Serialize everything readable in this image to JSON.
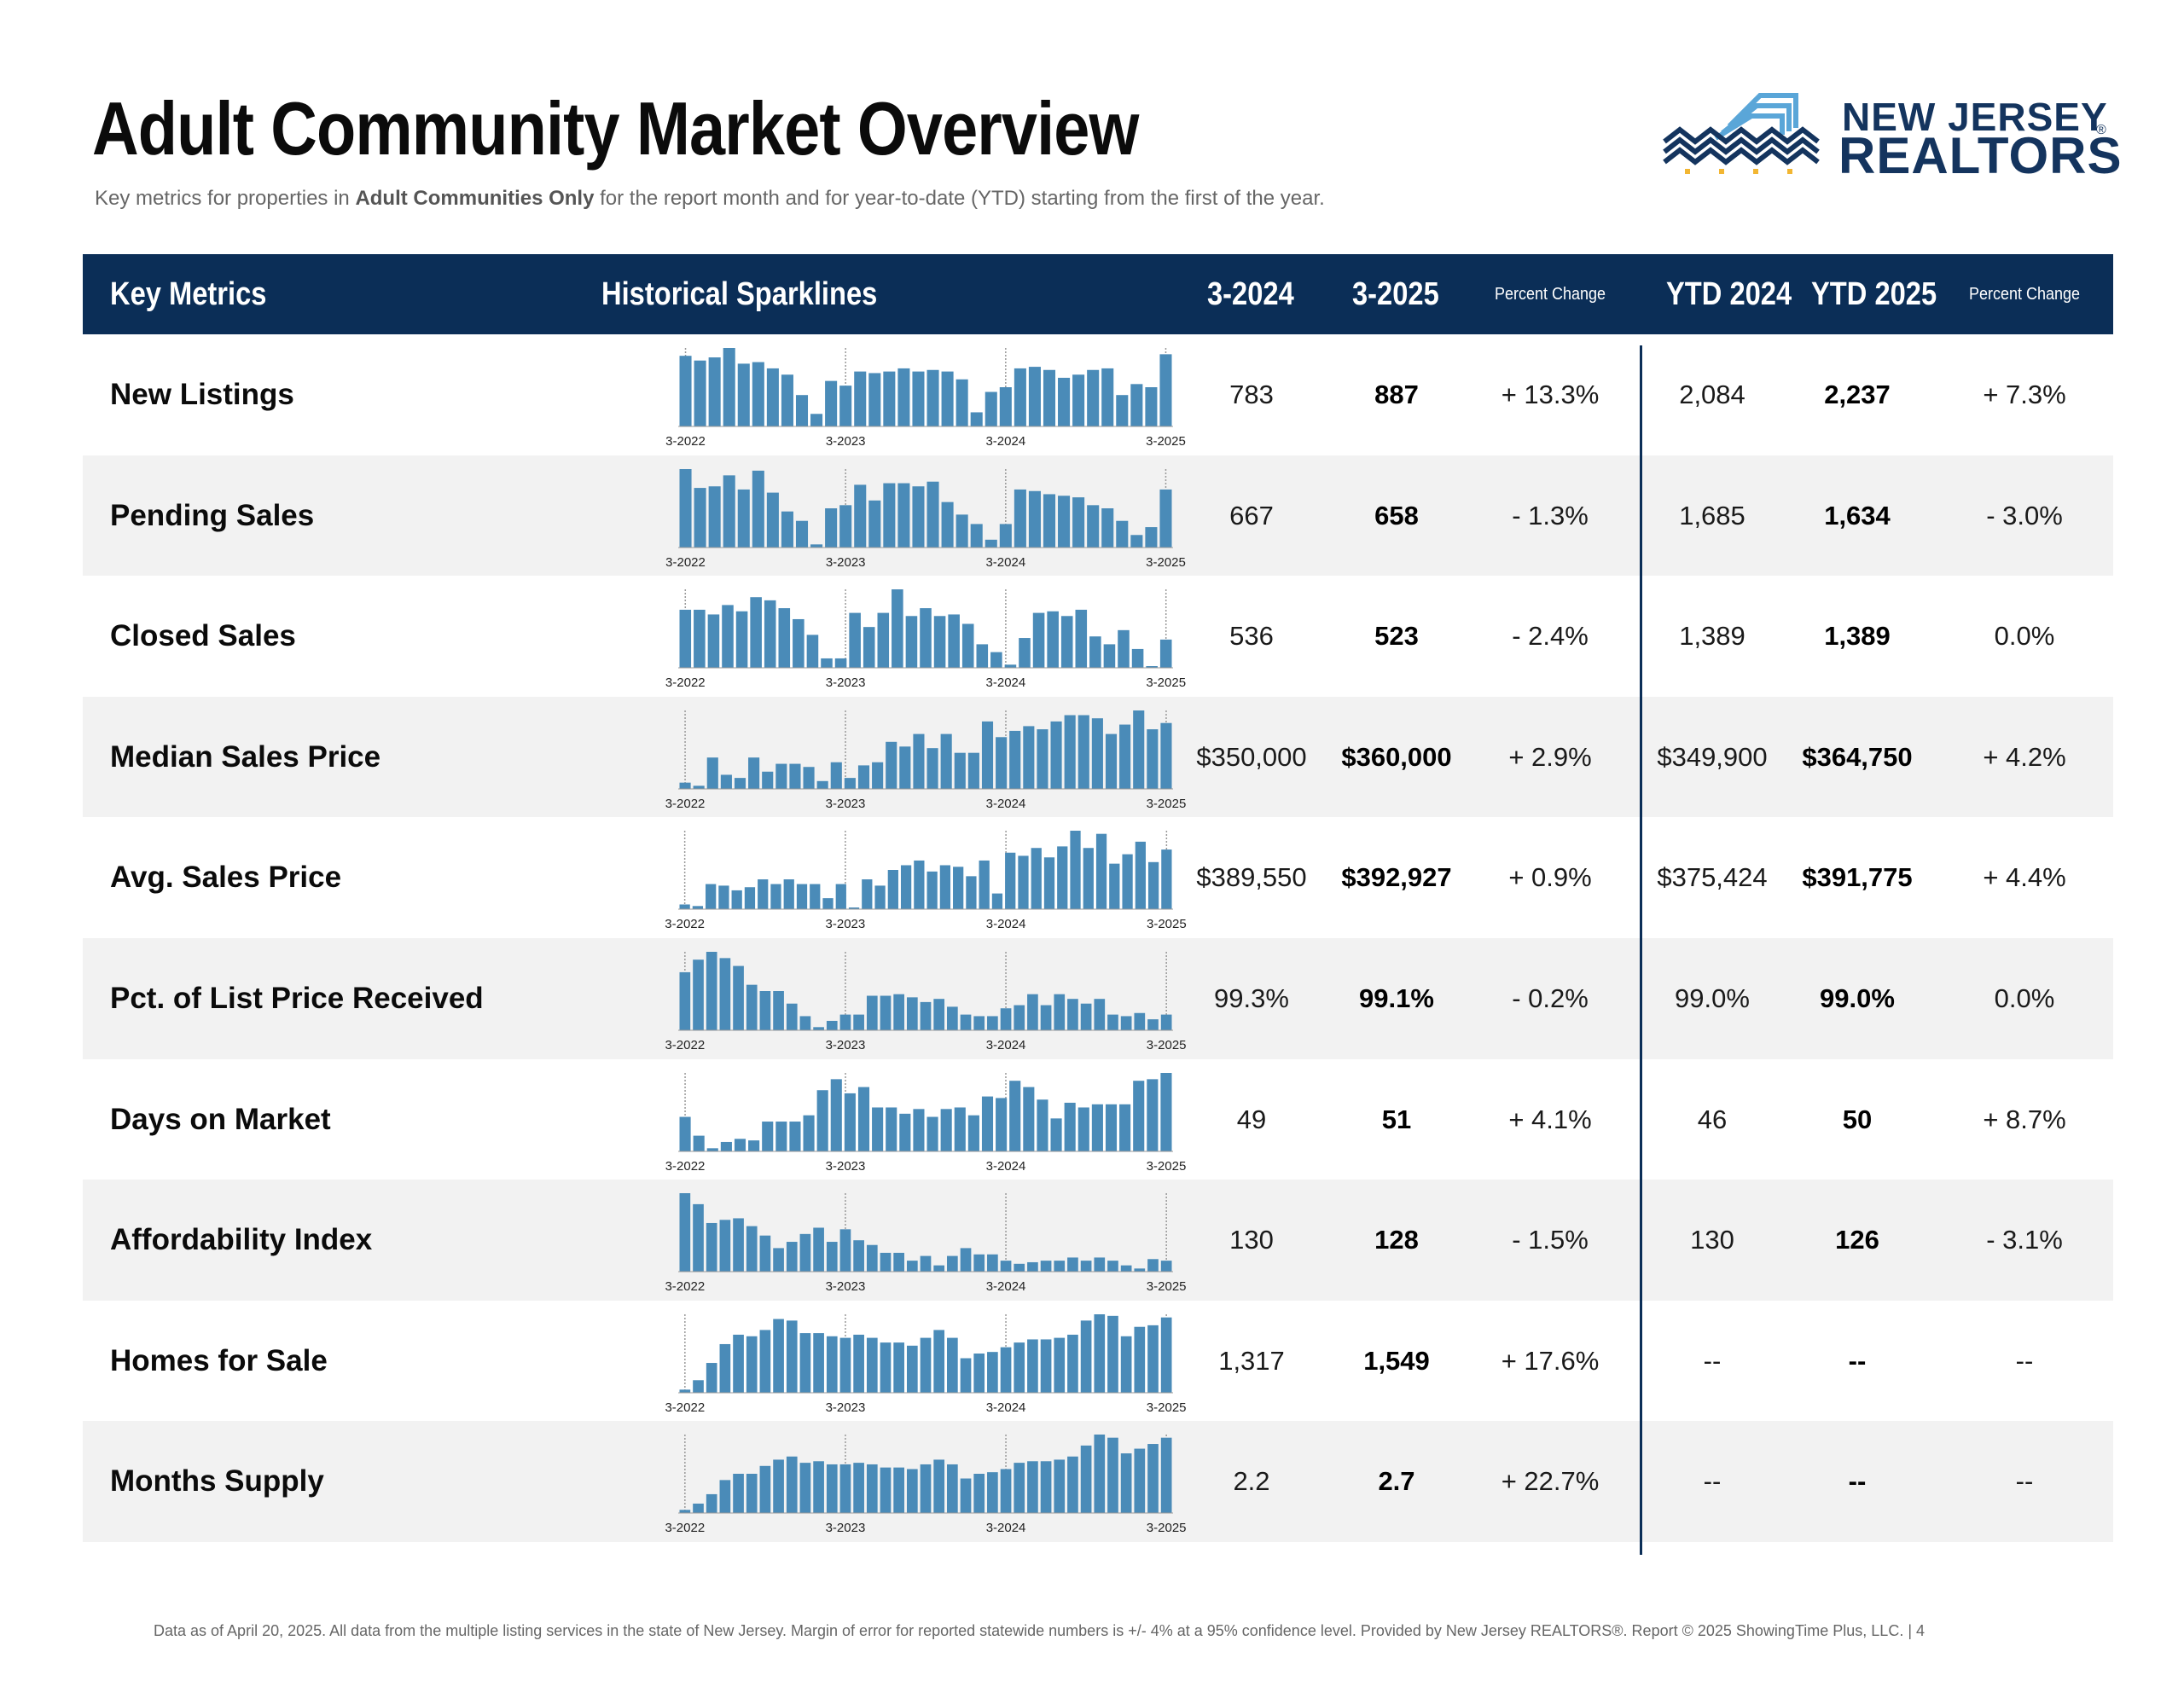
{
  "header": {
    "title": "Adult Community Market Overview",
    "subtitle_pre": "Key metrics for properties in ",
    "subtitle_bold": "Adult Communities Only",
    "subtitle_post": " for the report month and for year-to-date (YTD) starting from the first of the year.",
    "logo_line1": "NEW JERSEY",
    "logo_line2": "REALTORS",
    "logo_reg": "®"
  },
  "table_header": {
    "key_metrics": "Key Metrics",
    "sparklines": "Historical Sparklines",
    "col_prev": "3-2024",
    "col_curr": "3-2025",
    "pct_change": "Percent Change",
    "ytd_prev": "YTD 2024",
    "ytd_curr": "YTD 2025",
    "ytd_pct_change": "Percent Change"
  },
  "spark_labels": [
    "3-2022",
    "3-2023",
    "3-2024",
    "3-2025"
  ],
  "colors": {
    "navy": "#0b2e57",
    "bar": "#4a8bb8",
    "shade": "#f2f2f2",
    "logo_light": "#5aa6d8",
    "logo_gold": "#f2b632"
  },
  "rows": [
    {
      "metric": "New Listings",
      "prev": "783",
      "curr": "887",
      "pct": "+ 13.3%",
      "ytd_prev": "2,084",
      "ytd_curr": "2,237",
      "ytd_pct": "+ 7.3%",
      "spark": [
        90,
        84,
        88,
        100,
        80,
        82,
        74,
        66,
        40,
        16,
        58,
        52,
        70,
        68,
        70,
        74,
        70,
        72,
        70,
        60,
        18,
        44,
        50,
        74,
        76,
        72,
        62,
        66,
        72,
        74,
        40,
        54,
        50,
        92
      ]
    },
    {
      "metric": "Pending Sales",
      "prev": "667",
      "curr": "658",
      "pct": "- 1.3%",
      "ytd_prev": "1,685",
      "ytd_curr": "1,634",
      "ytd_pct": "- 3.0%",
      "spark": [
        100,
        76,
        78,
        92,
        74,
        98,
        70,
        46,
        34,
        4,
        50,
        54,
        80,
        60,
        82,
        82,
        78,
        84,
        58,
        42,
        30,
        10,
        30,
        74,
        72,
        68,
        66,
        64,
        54,
        50,
        34,
        16,
        26,
        74
      ]
    },
    {
      "metric": "Closed Sales",
      "prev": "536",
      "curr": "523",
      "pct": "- 2.4%",
      "ytd_prev": "1,389",
      "ytd_curr": "1,389",
      "ytd_pct": "0.0%",
      "spark": [
        74,
        74,
        68,
        80,
        72,
        90,
        86,
        76,
        62,
        42,
        12,
        12,
        70,
        52,
        70,
        100,
        66,
        76,
        66,
        68,
        56,
        30,
        20,
        4,
        38,
        70,
        72,
        66,
        74,
        40,
        30,
        48,
        24,
        2,
        36
      ]
    },
    {
      "metric": "Median Sales Price",
      "prev": "$350,000",
      "curr": "$360,000",
      "pct": "+ 2.9%",
      "ytd_prev": "$349,900",
      "ytd_curr": "$364,750",
      "ytd_pct": "+ 4.2%",
      "spark": [
        8,
        4,
        40,
        18,
        14,
        40,
        22,
        32,
        32,
        28,
        10,
        34,
        14,
        30,
        34,
        60,
        54,
        70,
        52,
        70,
        46,
        46,
        86,
        66,
        74,
        80,
        76,
        86,
        94,
        94,
        90,
        70,
        82,
        100,
        76,
        84
      ]
    },
    {
      "metric": "Avg. Sales Price",
      "prev": "$389,550",
      "curr": "$392,927",
      "pct": "+ 0.9%",
      "ytd_prev": "$375,424",
      "ytd_curr": "$391,775",
      "ytd_pct": "+ 4.4%",
      "spark": [
        6,
        4,
        32,
        30,
        24,
        28,
        38,
        32,
        38,
        32,
        32,
        14,
        32,
        2,
        38,
        30,
        50,
        56,
        62,
        48,
        56,
        54,
        42,
        62,
        20,
        72,
        68,
        78,
        66,
        80,
        100,
        78,
        96,
        58,
        70,
        86,
        60,
        76
      ]
    },
    {
      "metric": "Pct. of List Price Received",
      "prev": "99.3%",
      "curr": "99.1%",
      "pct": "- 0.2%",
      "ytd_prev": "99.0%",
      "ytd_curr": "99.0%",
      "ytd_pct": "0.0%",
      "spark": [
        74,
        90,
        100,
        92,
        82,
        58,
        50,
        50,
        34,
        18,
        4,
        12,
        20,
        20,
        44,
        44,
        46,
        42,
        36,
        40,
        30,
        20,
        18,
        18,
        28,
        32,
        46,
        32,
        46,
        40,
        34,
        40,
        20,
        18,
        22,
        14,
        20
      ]
    },
    {
      "metric": "Days on Market",
      "prev": "49",
      "curr": "51",
      "pct": "+ 4.1%",
      "ytd_prev": "46",
      "ytd_curr": "50",
      "ytd_pct": "+ 8.7%",
      "spark": [
        44,
        20,
        4,
        12,
        16,
        14,
        38,
        38,
        38,
        46,
        78,
        92,
        74,
        82,
        56,
        56,
        48,
        54,
        44,
        54,
        56,
        46,
        70,
        68,
        90,
        82,
        66,
        42,
        62,
        56,
        60,
        60,
        60,
        90,
        92,
        100
      ]
    },
    {
      "metric": "Affordability Index",
      "prev": "130",
      "curr": "128",
      "pct": "- 1.5%",
      "ytd_prev": "130",
      "ytd_curr": "126",
      "ytd_pct": "- 3.1%",
      "spark": [
        100,
        86,
        62,
        66,
        68,
        58,
        46,
        30,
        38,
        48,
        56,
        38,
        54,
        40,
        34,
        24,
        24,
        14,
        20,
        8,
        20,
        30,
        22,
        22,
        14,
        10,
        12,
        14,
        14,
        18,
        14,
        18,
        14,
        8,
        4,
        16,
        14
      ]
    },
    {
      "metric": "Homes for Sale",
      "prev": "1,317",
      "curr": "1,549",
      "pct": "+ 17.6%",
      "ytd_prev": "--",
      "ytd_curr": "--",
      "ytd_pct": "--",
      "spark": [
        4,
        16,
        38,
        62,
        74,
        72,
        80,
        94,
        92,
        76,
        76,
        72,
        70,
        74,
        70,
        64,
        64,
        60,
        70,
        80,
        70,
        44,
        50,
        52,
        58,
        64,
        68,
        68,
        70,
        74,
        92,
        100,
        98,
        72,
        84,
        86,
        96
      ]
    },
    {
      "metric": "Months Supply",
      "prev": "2.2",
      "curr": "2.7",
      "pct": "+ 22.7%",
      "ytd_prev": "--",
      "ytd_curr": "--",
      "ytd_pct": "--",
      "spark": [
        4,
        12,
        24,
        42,
        50,
        50,
        60,
        68,
        72,
        64,
        66,
        62,
        62,
        64,
        62,
        58,
        58,
        56,
        62,
        68,
        62,
        44,
        50,
        52,
        56,
        64,
        66,
        66,
        68,
        72,
        86,
        100,
        96,
        76,
        82,
        88,
        96
      ]
    }
  ],
  "footer": "Data as of April 20, 2025. All data from the multiple listing services in the state of New Jersey. Margin of error for reported statewide numbers is +/- 4% at a 95% confidence level. Provided by New Jersey REALTORS®. Report © 2025 ShowingTime Plus, LLC. |  4"
}
